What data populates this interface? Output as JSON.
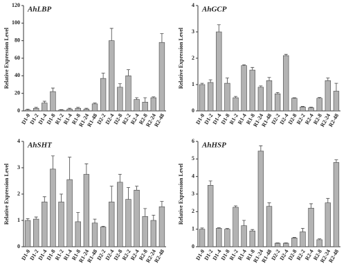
{
  "chart_data": [
    {
      "type": "bar",
      "title": "AhLBP",
      "ylabel": "Relative Expression Level",
      "categories": [
        "D1-0",
        "D1-2",
        "D1-4",
        "D1-8",
        "R1-2",
        "R1-4",
        "R1-8",
        "R1-24",
        "R1-48",
        "D2-2",
        "D2-4",
        "D2-8",
        "R2-2",
        "R2-4",
        "R2-8",
        "R2-24",
        "R2-48"
      ],
      "values": [
        1,
        3,
        9,
        22,
        1,
        2,
        3,
        2,
        8,
        37,
        80,
        27,
        40,
        13,
        10,
        15,
        78
      ],
      "errors": [
        1,
        1,
        2,
        4,
        0.5,
        1,
        1,
        1,
        1,
        6,
        14,
        4,
        7,
        2,
        5,
        1,
        10
      ],
      "ylim": [
        0,
        120
      ],
      "yticks": [
        0,
        20,
        40,
        60,
        80,
        100,
        120
      ],
      "color": "#b3b3b3"
    },
    {
      "type": "bar",
      "title": "AhGCP",
      "ylabel": "Relative Expression Level",
      "categories": [
        "D1-0",
        "D1-2",
        "D1-4",
        "D1-8",
        "R1-2",
        "R1-4",
        "R1-8",
        "R1-24",
        "R1-48",
        "D2-2",
        "D2-4",
        "D2-8",
        "R2-2",
        "R2-4",
        "R2-8",
        "R2-24",
        "R2-48"
      ],
      "values": [
        1.0,
        1.08,
        3.0,
        1.05,
        0.5,
        1.72,
        1.55,
        0.9,
        1.15,
        0.65,
        2.1,
        0.48,
        0.15,
        0.12,
        0.48,
        1.15,
        0.75
      ],
      "errors": [
        0.05,
        0.1,
        0.27,
        0.2,
        0.05,
        0.03,
        0.1,
        0.05,
        0.12,
        0.05,
        0.05,
        0.02,
        0.02,
        0.02,
        0.03,
        0.1,
        0.3
      ],
      "ylim": [
        0,
        4
      ],
      "yticks": [
        0,
        1,
        2,
        3,
        4
      ],
      "color": "#b3b3b3"
    },
    {
      "type": "bar",
      "title": "AhSHT",
      "ylabel": "Relative Expression Level",
      "categories": [
        "D1-0",
        "D1-2",
        "D1-4",
        "D1-8",
        "R1-2",
        "R1-4",
        "R1-8",
        "R1-24",
        "R1-48",
        "D2-2",
        "D2-4",
        "D2-8",
        "R2-2",
        "R2-4",
        "R2-8",
        "R2-24",
        "R2-48"
      ],
      "values": [
        1.0,
        1.05,
        1.7,
        2.95,
        1.7,
        2.55,
        0.95,
        2.75,
        0.9,
        0.75,
        1.7,
        2.45,
        1.8,
        2.15,
        1.15,
        1.0,
        1.52
      ],
      "errors": [
        0.07,
        0.08,
        0.2,
        0.5,
        0.3,
        0.85,
        0.35,
        0.4,
        0.15,
        0.03,
        0.6,
        0.3,
        0.45,
        0.15,
        0.3,
        0.2,
        0.2
      ],
      "ylim": [
        0,
        4
      ],
      "yticks": [
        0,
        1,
        2,
        3,
        4
      ],
      "color": "#b3b3b3"
    },
    {
      "type": "bar",
      "title": "AhHSP",
      "ylabel": "Relative Expression Level",
      "categories": [
        "D1-0",
        "D1-2",
        "D1-4",
        "D1-8",
        "R1-2",
        "R1-4",
        "R1-8",
        "R1-24",
        "R1-48",
        "D2-2",
        "D2-4",
        "D2-8",
        "R2-2",
        "R2-4",
        "R2-8",
        "R2-24",
        "R2-48"
      ],
      "values": [
        1.0,
        3.5,
        1.05,
        1.0,
        2.25,
        1.2,
        0.9,
        5.45,
        2.3,
        0.2,
        0.2,
        0.5,
        0.85,
        2.2,
        0.4,
        2.5,
        4.8
      ],
      "errors": [
        0.07,
        0.25,
        0.03,
        0.04,
        0.08,
        0.3,
        0.08,
        0.3,
        0.2,
        0.02,
        0.02,
        0.03,
        0.2,
        0.25,
        0.05,
        0.25,
        0.15
      ],
      "ylim": [
        0,
        6
      ],
      "yticks": [
        0,
        1,
        2,
        3,
        4,
        5,
        6
      ],
      "color": "#b3b3b3"
    }
  ]
}
